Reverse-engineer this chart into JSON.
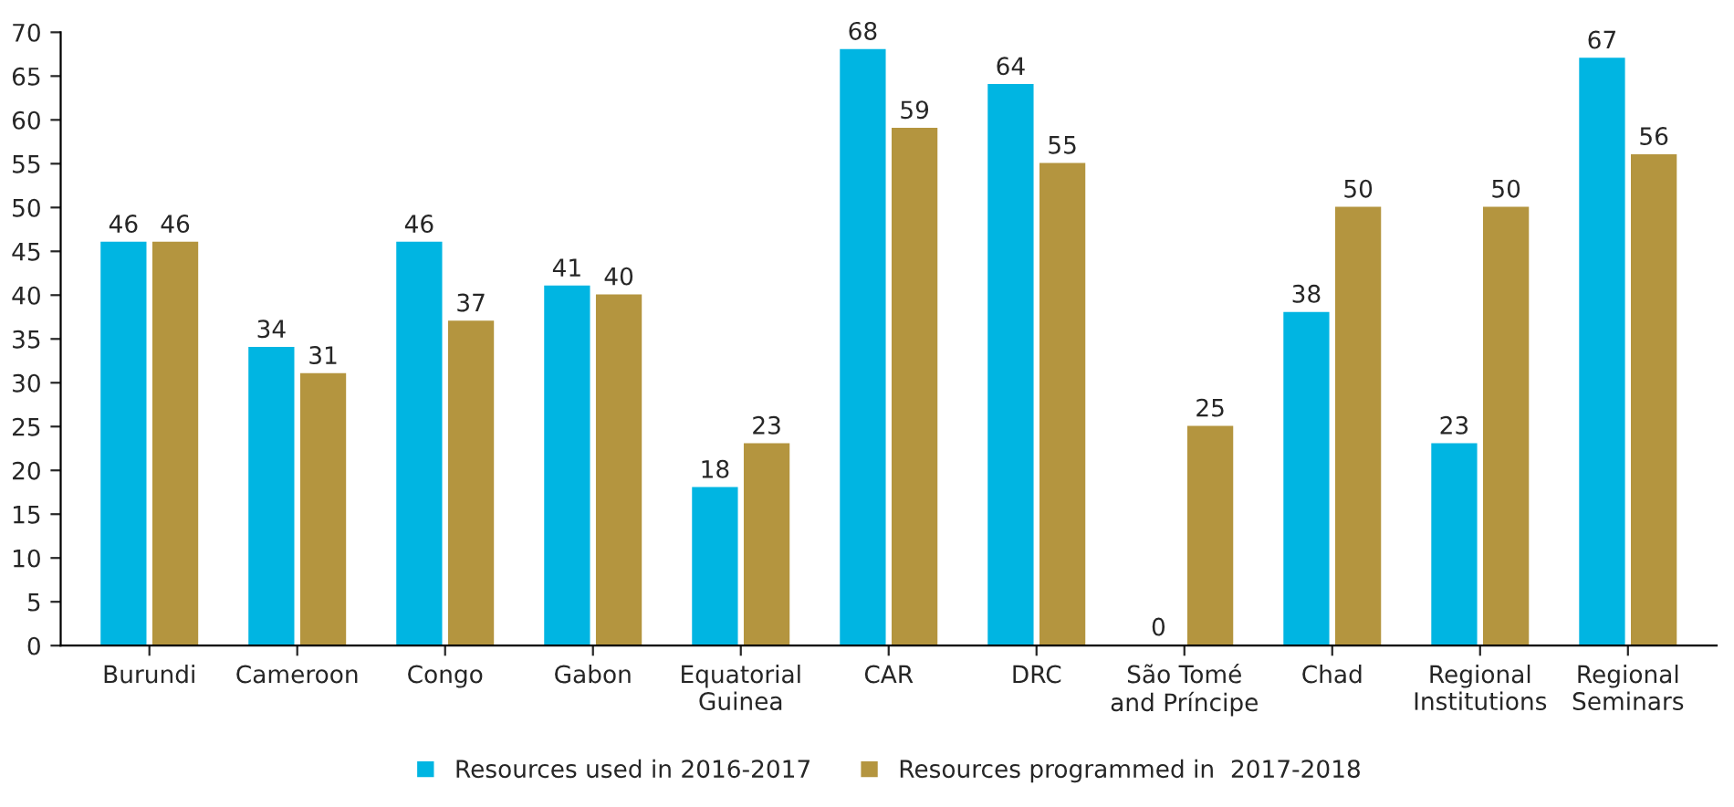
{
  "chart_data": {
    "type": "bar",
    "categories": [
      "Burundi",
      "Cameroon",
      "Congo",
      "Gabon",
      "Equatorial\nGuinea",
      "CAR",
      "DRC",
      "São Tomé\nand Príncipe",
      "Chad",
      "Regional\nInstitutions",
      "Regional\nSeminars"
    ],
    "series": [
      {
        "name": "Resources used in 2016-2017",
        "color": "#00b5e2",
        "values": [
          46,
          34,
          46,
          41,
          18,
          68,
          64,
          0,
          38,
          23,
          67
        ]
      },
      {
        "name": "Resources programmed in  2017-2018",
        "color": "#b4953f",
        "values": [
          46,
          31,
          37,
          40,
          23,
          59,
          55,
          25,
          50,
          50,
          56
        ]
      }
    ],
    "ylim": [
      0,
      70
    ],
    "yticks": [
      0,
      5,
      10,
      15,
      20,
      25,
      30,
      35,
      40,
      45,
      50,
      55,
      60,
      65,
      70
    ],
    "data_labels": true,
    "grid": false,
    "legend": "bottom"
  }
}
